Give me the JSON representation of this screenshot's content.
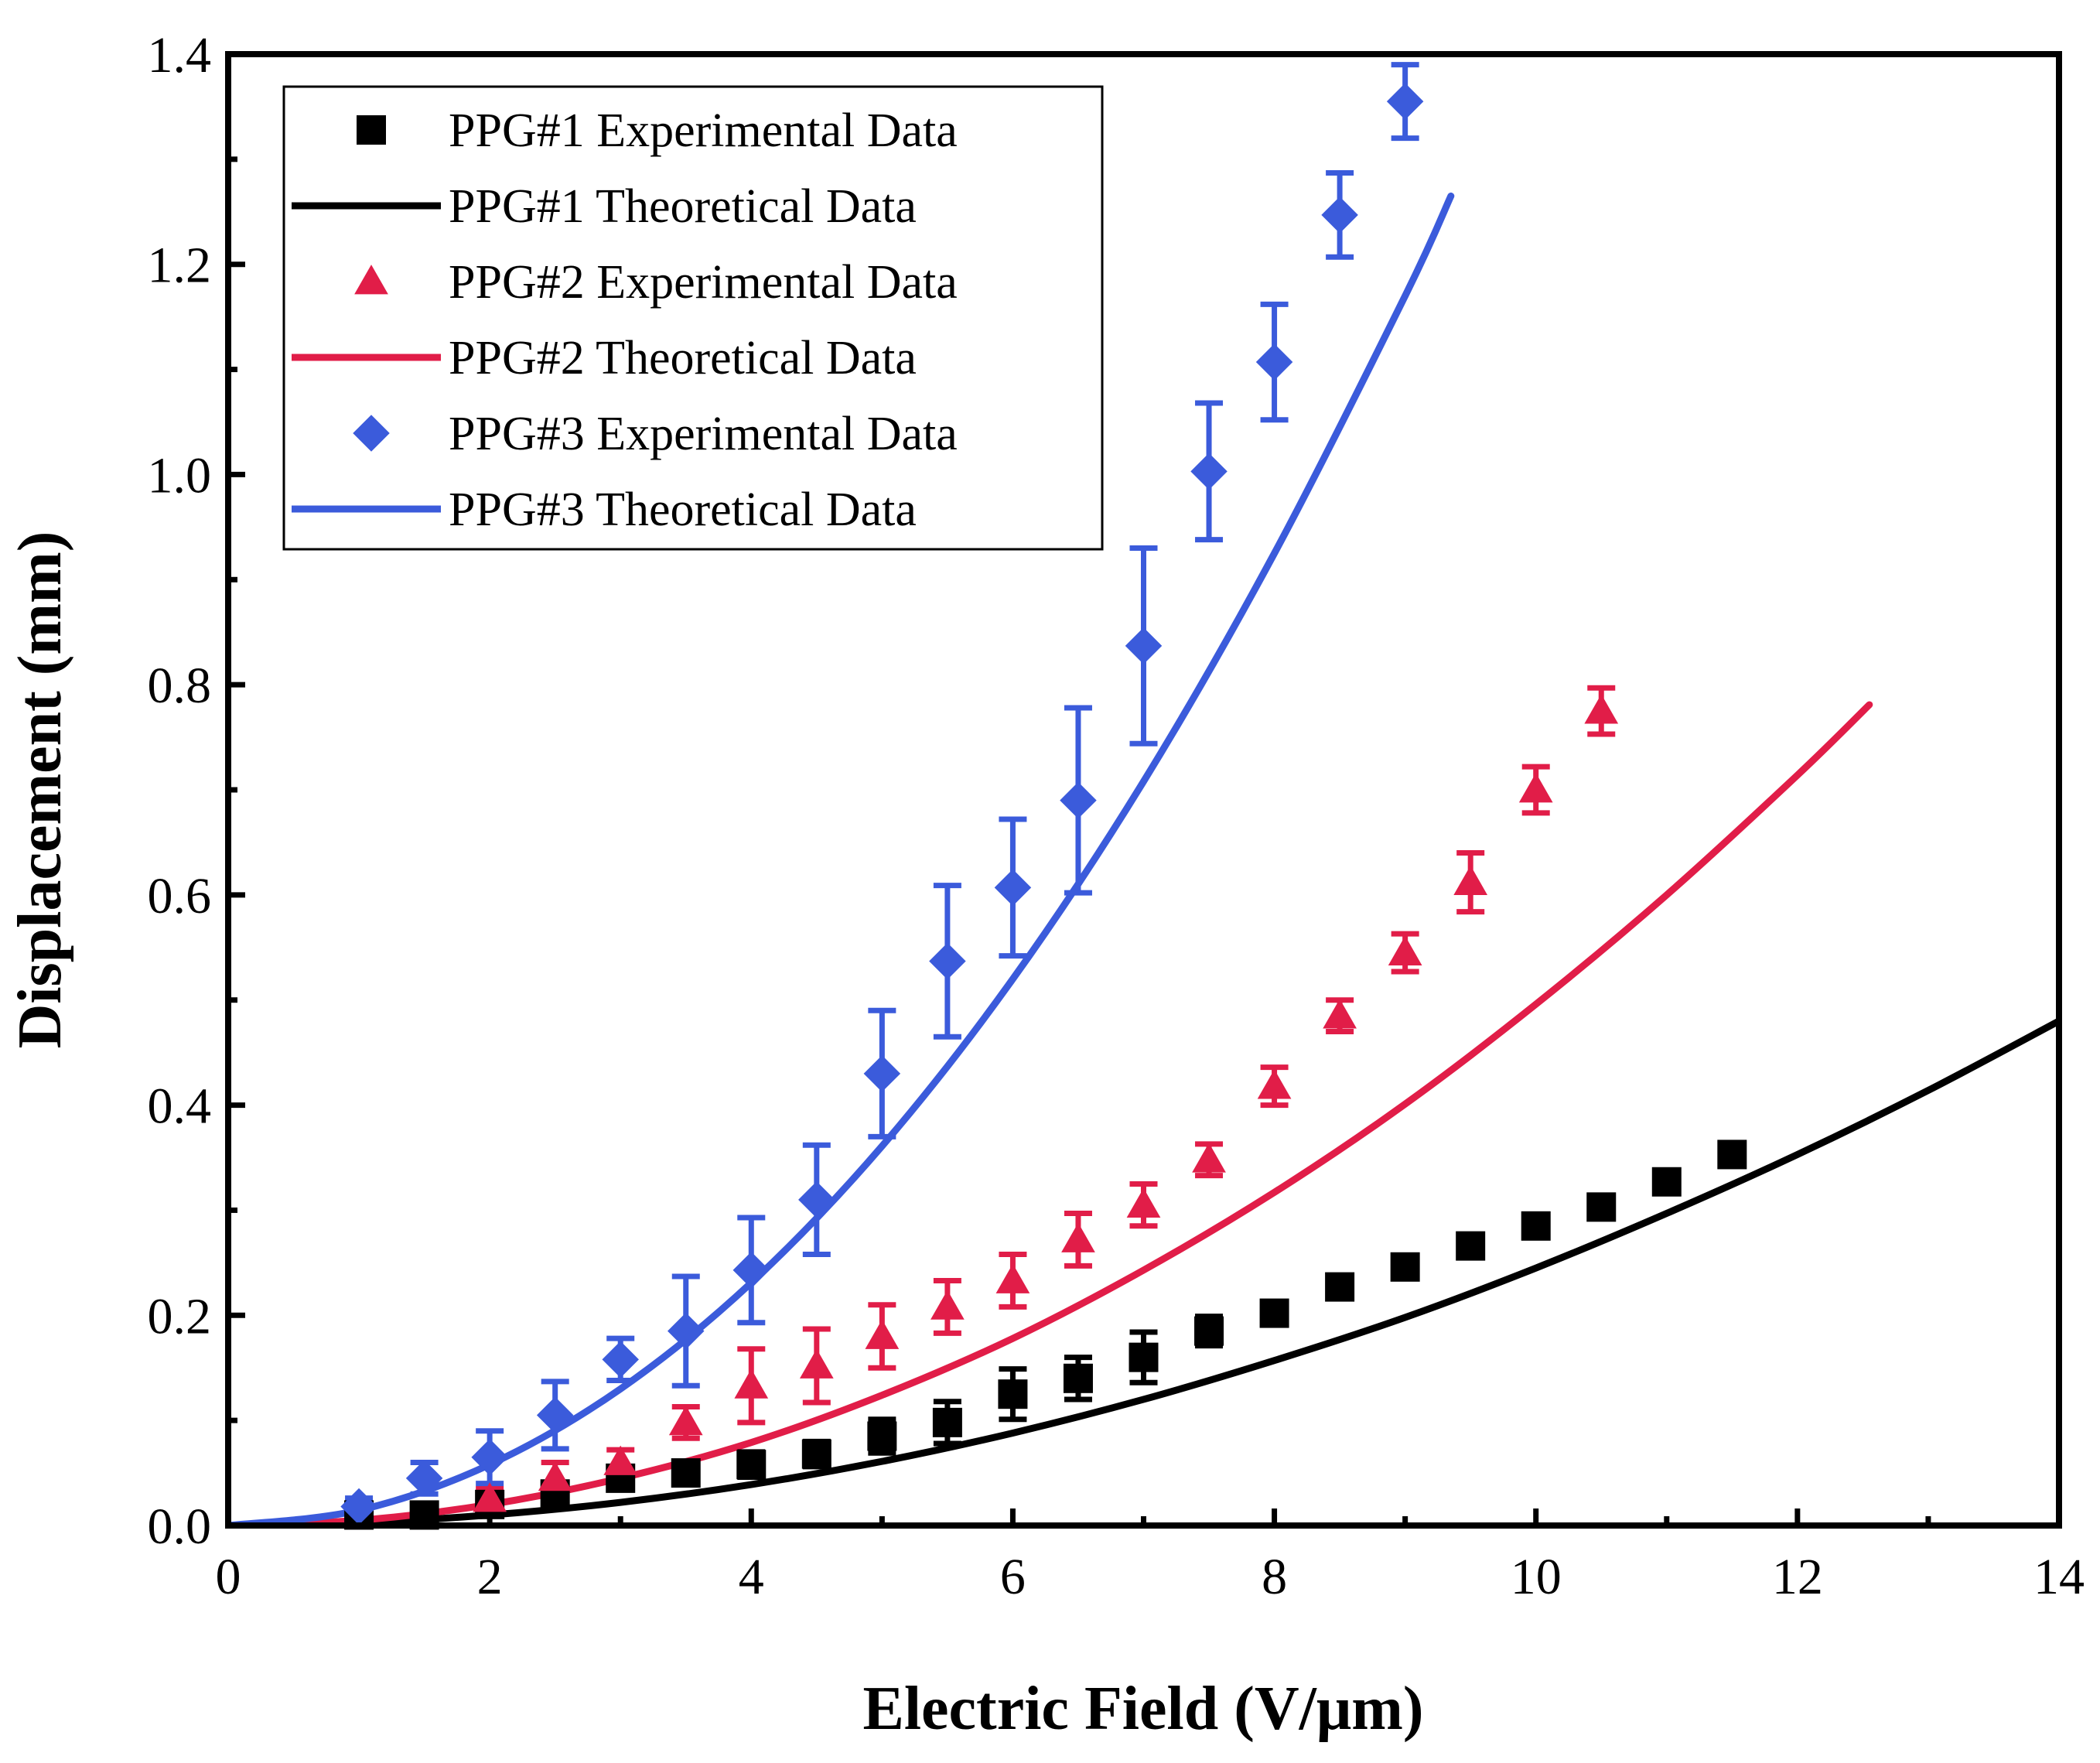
{
  "chart_data": {
    "type": "scatter",
    "title": "",
    "xlabel": "Electric Field (V/μm)",
    "ylabel": "Displacement (mm)",
    "xlim": [
      0,
      14
    ],
    "ylim": [
      0,
      1.4
    ],
    "x_ticks": [
      "0",
      "2",
      "4",
      "6",
      "8",
      "10",
      "12",
      "14"
    ],
    "y_ticks": [
      "0.0",
      "0.2",
      "0.4",
      "0.6",
      "0.8",
      "1.0",
      "1.2",
      "1.4"
    ],
    "legend_position": "top-left",
    "series": [
      {
        "name": "PPG#1 Experimental Data",
        "kind": "scatter",
        "marker": "square",
        "color": "#000000",
        "x": [
          1,
          1.5,
          2,
          2.5,
          3,
          3.5,
          4,
          4.5,
          5,
          5.5,
          6,
          6.5,
          7,
          7.5,
          8,
          8.5,
          9,
          9.5,
          10,
          10.5,
          11,
          11.5
        ],
        "y": [
          0.01,
          0.01,
          0.02,
          0.03,
          0.045,
          0.05,
          0.058,
          0.068,
          0.085,
          0.098,
          0.125,
          0.14,
          0.16,
          0.185,
          0.202,
          0.227,
          0.246,
          0.266,
          0.285,
          0.303,
          0.327,
          0.353
        ],
        "err": [
          0.007,
          0.007,
          0.008,
          0.009,
          0.01,
          0.01,
          0.012,
          0.012,
          0.016,
          0.02,
          0.024,
          0.02,
          0.024,
          0.014,
          0.01,
          0.01,
          0.01,
          0.01,
          0.01,
          0.01,
          0.01,
          0.01
        ]
      },
      {
        "name": "PPG#1 Theoretical Data",
        "kind": "line",
        "color": "#000000",
        "x": [
          0,
          1,
          2,
          3,
          4,
          5,
          6,
          7,
          8,
          9,
          10,
          11,
          12,
          13,
          14
        ],
        "y": [
          0,
          0.0025,
          0.01,
          0.022,
          0.039,
          0.061,
          0.088,
          0.12,
          0.157,
          0.198,
          0.245,
          0.297,
          0.353,
          0.414,
          0.48
        ]
      },
      {
        "name": "PPG#2 Experimental Data",
        "kind": "scatter",
        "marker": "triangle",
        "color": "#e11d48",
        "x": [
          2,
          2.5,
          3,
          3.5,
          4,
          4.5,
          5,
          5.5,
          6,
          6.5,
          7,
          7.5,
          8,
          8.5,
          9,
          9.5,
          10,
          10.5
        ],
        "y": [
          0.025,
          0.045,
          0.06,
          0.098,
          0.133,
          0.152,
          0.18,
          0.208,
          0.233,
          0.272,
          0.305,
          0.348,
          0.418,
          0.485,
          0.545,
          0.612,
          0.7,
          0.775
        ],
        "err": [
          0.01,
          0.015,
          0.012,
          0.015,
          0.035,
          0.035,
          0.03,
          0.025,
          0.025,
          0.025,
          0.02,
          0.015,
          0.018,
          0.015,
          0.018,
          0.028,
          0.022,
          0.022
        ]
      },
      {
        "name": "PPG#2 Theoretical Data",
        "kind": "line",
        "color": "#e11d48",
        "x": [
          0,
          1,
          2,
          3,
          4,
          5,
          6,
          7,
          8,
          9,
          10,
          11,
          12,
          12.55
        ],
        "y": [
          0,
          0.005,
          0.02,
          0.045,
          0.079,
          0.124,
          0.178,
          0.243,
          0.317,
          0.401,
          0.496,
          0.6,
          0.714,
          0.781
        ]
      },
      {
        "name": "PPG#3 Experimental Data",
        "kind": "scatter",
        "marker": "diamond",
        "color": "#3b5bdb",
        "x": [
          1,
          1.5,
          2,
          2.5,
          3,
          3.5,
          4,
          4.5,
          5,
          5.5,
          6,
          6.5,
          7,
          7.5,
          8,
          8.5,
          9
        ],
        "y": [
          0.018,
          0.045,
          0.065,
          0.105,
          0.158,
          0.185,
          0.243,
          0.31,
          0.43,
          0.537,
          0.607,
          0.69,
          0.837,
          1.003,
          1.107,
          1.247,
          1.355
        ],
        "err": [
          0.008,
          0.015,
          0.025,
          0.032,
          0.02,
          0.052,
          0.05,
          0.052,
          0.06,
          0.072,
          0.065,
          0.088,
          0.093,
          0.065,
          0.055,
          0.04,
          0.035
        ]
      },
      {
        "name": "PPG#3 Theoretical Data",
        "kind": "line",
        "color": "#3b5bdb",
        "x": [
          0,
          1,
          2,
          3,
          4,
          5,
          6,
          7,
          8,
          9,
          9.35
        ],
        "y": [
          0,
          0.0145,
          0.058,
          0.13,
          0.231,
          0.361,
          0.52,
          0.708,
          0.925,
          1.17,
          1.265
        ]
      }
    ]
  }
}
